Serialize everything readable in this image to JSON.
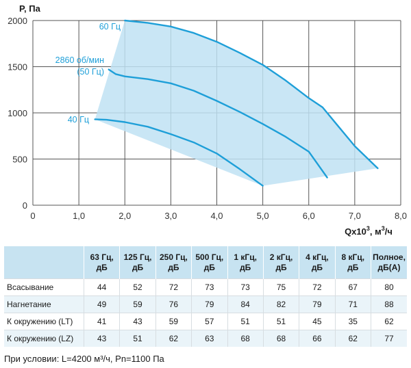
{
  "chart_data": {
    "type": "line",
    "ylabel": "P, Па",
    "xlabel_main": "Qx10",
    "xlabel_sup": "3",
    "xlabel_tail": ", м",
    "xlabel_unit_sup": "3",
    "xlabel_end": "/ч",
    "xlim": [
      0,
      8
    ],
    "ylim": [
      0,
      2000
    ],
    "x_ticks": [
      "0",
      "1,0",
      "2,0",
      "3,0",
      "4,0",
      "5,0",
      "6,0",
      "7,0",
      "8,0"
    ],
    "y_ticks": [
      "0",
      "500",
      "1000",
      "1500",
      "2000"
    ],
    "grid": true,
    "series": [
      {
        "name": "60 Гц",
        "color": "#1e9fd8",
        "x": [
          2.0,
          2.5,
          3.0,
          3.5,
          4.0,
          4.5,
          5.0,
          5.5,
          6.0,
          6.3,
          6.6,
          7.0,
          7.5
        ],
        "y": [
          2000,
          1975,
          1935,
          1865,
          1770,
          1650,
          1520,
          1350,
          1160,
          1060,
          880,
          640,
          400
        ]
      },
      {
        "name_line1": "2860 об/мин",
        "name_line2": "(50 Гц)",
        "color": "#1e9fd8",
        "x": [
          1.65,
          1.8,
          2.0,
          2.5,
          3.0,
          3.5,
          4.0,
          4.5,
          5.0,
          5.5,
          6.0,
          6.2,
          6.4
        ],
        "y": [
          1470,
          1420,
          1395,
          1365,
          1320,
          1240,
          1130,
          1010,
          880,
          740,
          580,
          440,
          300
        ]
      },
      {
        "name": "40 Гц",
        "color": "#1e9fd8",
        "x": [
          1.35,
          1.6,
          2.0,
          2.5,
          3.0,
          3.5,
          4.0,
          4.5,
          5.0
        ],
        "y": [
          930,
          925,
          900,
          850,
          770,
          680,
          560,
          390,
          210
        ]
      }
    ],
    "region_color": "#bfe2f3"
  },
  "table": {
    "headers": [
      [
        ""
      ],
      [
        "63 Гц,",
        "дБ"
      ],
      [
        "125 Гц,",
        "дБ"
      ],
      [
        "250 Гц,",
        "дБ"
      ],
      [
        "500 Гц,",
        "дБ"
      ],
      [
        "1 кГц,",
        "дБ"
      ],
      [
        "2 кГц,",
        "дБ"
      ],
      [
        "4 кГц,",
        "дБ"
      ],
      [
        "8 кГц,",
        "дБ"
      ],
      [
        "Полное,",
        "дБ(А)"
      ]
    ],
    "rows": [
      [
        "Всасывание",
        "44",
        "52",
        "72",
        "73",
        "73",
        "75",
        "72",
        "67",
        "80"
      ],
      [
        "Нагнетание",
        "49",
        "59",
        "76",
        "79",
        "84",
        "82",
        "79",
        "71",
        "88"
      ],
      [
        "К окружению (LT)",
        "41",
        "43",
        "59",
        "57",
        "51",
        "51",
        "45",
        "35",
        "62"
      ],
      [
        "К окружению (LZ)",
        "43",
        "51",
        "62",
        "63",
        "68",
        "68",
        "66",
        "62",
        "77"
      ]
    ]
  },
  "footnote": "При условии: L=4200 м³/ч, Pn=1100 Па"
}
